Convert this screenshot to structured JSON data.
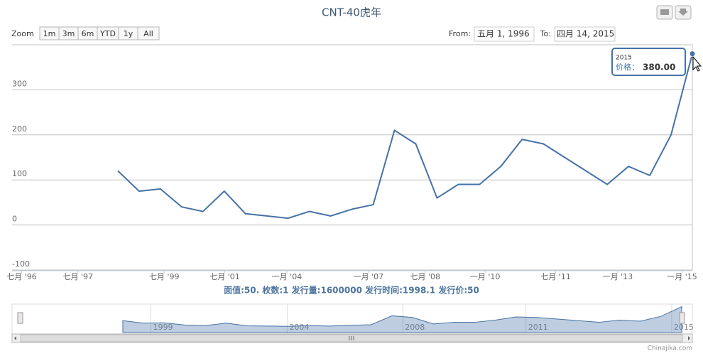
{
  "chart_data": {
    "type": "line",
    "title": "CNT-40虎年",
    "zoom": {
      "label": "Zoom",
      "buttons": [
        "1m",
        "3m",
        "6m",
        "YTD",
        "1y",
        "All"
      ]
    },
    "range": {
      "from_label": "From:",
      "from": "五月 1, 1996",
      "to_label": "To:",
      "to": "四月 14, 2015"
    },
    "xlabel": "面值:50. 枚数:1 发行量:1600000 发行时间:1998.1 发行价:50",
    "color": "#4572a7",
    "x": [
      1998.21,
      1998.79,
      1999.38,
      2000.06,
      2000.77,
      2001.48,
      2002.33,
      2003.2,
      2004.05,
      2004.85,
      2005.65,
      2006.44,
      2007.16,
      2007.71,
      2008.26,
      2008.8,
      2009.34,
      2009.88,
      2010.34,
      2010.79,
      2011.23,
      2011.7,
      2012.21,
      2012.71,
      2013.3,
      2014.0,
      2014.7,
      2015.28
    ],
    "values": [
      120,
      75,
      80,
      40,
      30,
      75,
      25,
      20,
      15,
      30,
      20,
      35,
      45,
      210,
      180,
      60,
      90,
      90,
      130,
      190,
      180,
      150,
      120,
      90,
      130,
      110,
      200,
      380
    ],
    "xlim": [
      1996.33,
      2015.28
    ],
    "xticks": [
      {
        "value": 1996.5,
        "label": "七月 '96"
      },
      {
        "value": 1997.5,
        "label": "七月 '97"
      },
      {
        "value": 1999.5,
        "label": "七月 '99"
      },
      {
        "value": 2001.5,
        "label": "七月 '01"
      },
      {
        "value": 2004.0,
        "label": "一月 '04"
      },
      {
        "value": 2007.0,
        "label": "一月 '07"
      },
      {
        "value": 2008.5,
        "label": "七月 '08"
      },
      {
        "value": 2010.0,
        "label": "一月 '10"
      },
      {
        "value": 2011.5,
        "label": "七月 '11"
      },
      {
        "value": 2013.0,
        "label": "一月 '13"
      },
      {
        "value": 2015.0,
        "label": "一月 '15"
      }
    ],
    "ylim": [
      -100,
      400
    ],
    "yticks": [
      -100,
      0,
      100,
      200,
      300
    ],
    "grid": true,
    "tooltip": {
      "title": "2015",
      "label": "价格：",
      "value": "380.00"
    },
    "navigator": {
      "xticks": [
        1999,
        2004,
        2008,
        2011,
        2015
      ]
    },
    "credits": "Chinajika.com"
  }
}
